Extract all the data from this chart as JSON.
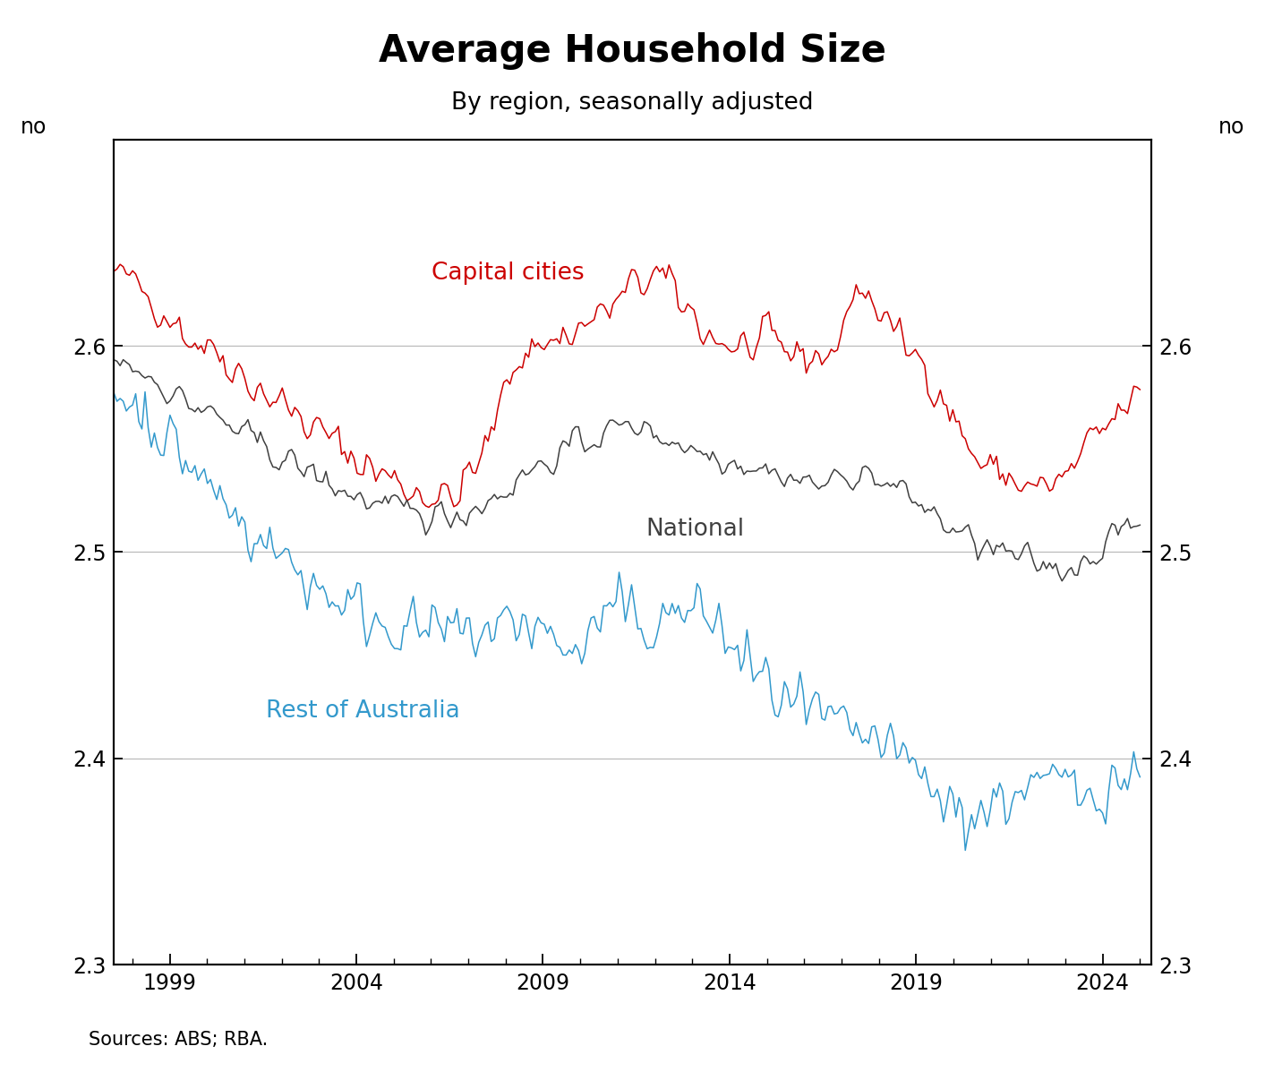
{
  "title": "Average Household Size",
  "subtitle": "By region, seasonally adjusted",
  "ylabel_left": "no",
  "ylabel_right": "no",
  "source": "Sources: ABS; RBA.",
  "ylim": [
    2.3,
    2.7
  ],
  "yticks": [
    2.3,
    2.4,
    2.5,
    2.6
  ],
  "xticks": [
    1999,
    2004,
    2009,
    2014,
    2019,
    2024
  ],
  "color_capital": "#cc0000",
  "color_national": "#404040",
  "color_rest": "#3399cc",
  "title_fontsize": 30,
  "subtitle_fontsize": 19,
  "tick_fontsize": 17,
  "label_fontsize": 19,
  "source_fontsize": 15,
  "xmin": 1997.5,
  "xmax": 2025.3
}
